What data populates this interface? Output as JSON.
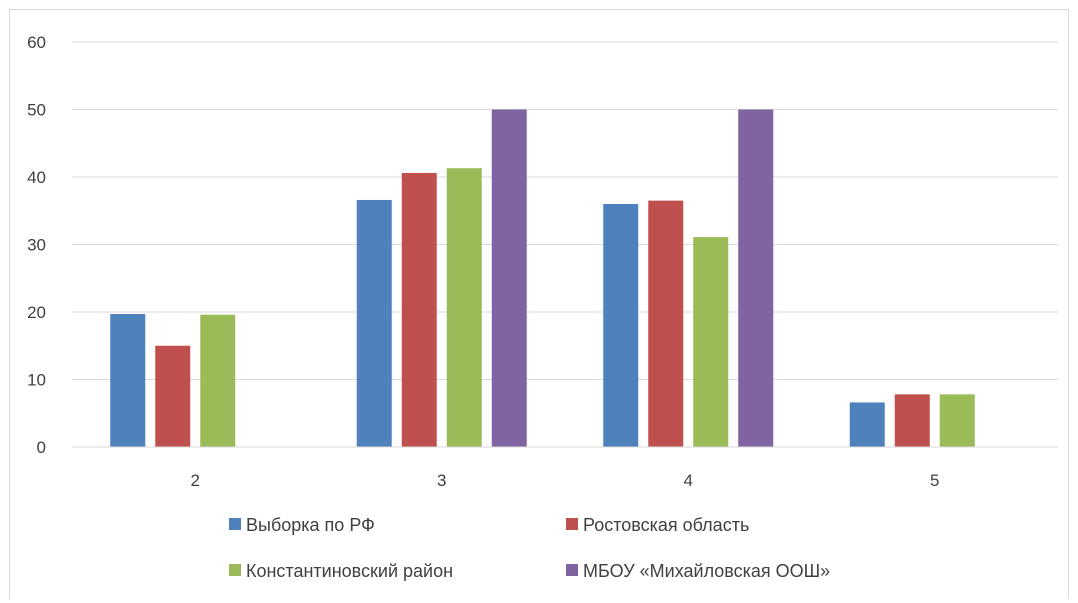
{
  "chart_data": {
    "type": "bar",
    "title": "",
    "xlabel": "",
    "ylabel": "",
    "categories": [
      "2",
      "3",
      "4",
      "5"
    ],
    "ylim": [
      0,
      60
    ],
    "yticks": [
      0,
      10,
      20,
      30,
      40,
      50,
      60
    ],
    "grid": true,
    "legend_position": "bottom",
    "series": [
      {
        "name": "Выборка по РФ",
        "color": "#4f81bd",
        "values": [
          19.7,
          36.6,
          36.0,
          6.6
        ]
      },
      {
        "name": "Ростовская область",
        "color": "#c0504d",
        "values": [
          15.0,
          40.6,
          36.5,
          7.8
        ]
      },
      {
        "name": "Константиновский район",
        "color": "#9bbb59",
        "values": [
          19.6,
          41.3,
          31.1,
          7.8
        ]
      },
      {
        "name": "МБОУ «Михайловская ООШ»",
        "color": "#8064a2",
        "values": [
          0,
          50,
          50,
          0
        ]
      }
    ]
  }
}
